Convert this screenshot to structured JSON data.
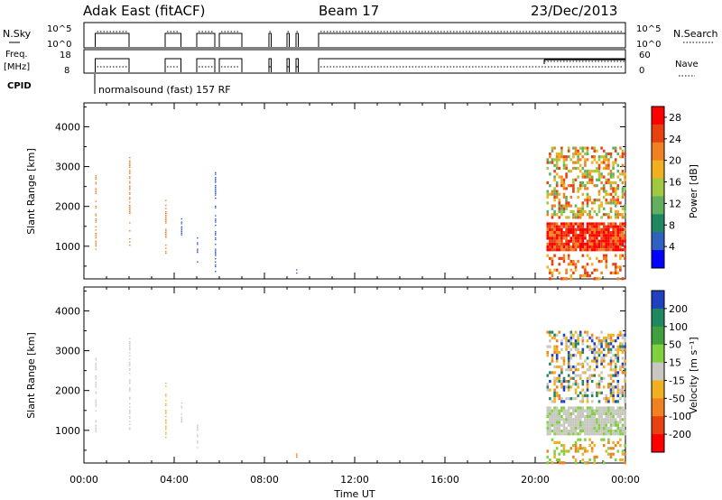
{
  "header": {
    "station": "Adak East (fitACF)",
    "beam": "Beam 17",
    "date": "23/Dec/2013"
  },
  "panels": {
    "nsky_label": "N.Sky",
    "nsky_ticks": [
      "10^5",
      "10^0"
    ],
    "nsearch_label": "N.Search",
    "nsearch_ticks": [
      "10^5",
      "10^0"
    ],
    "freq_label": "Freq.",
    "freq_unit": "[MHz]",
    "freq_ticks": [
      "18",
      "8"
    ],
    "nave_label": "Nave",
    "nave_ticks": [
      "60",
      "0"
    ],
    "cpid_label": "CPID",
    "cpid_text": "normalsound (fast) 157 RF"
  },
  "chart_data": [
    {
      "type": "heatmap",
      "name": "power",
      "ylabel": "Slant Range [km]",
      "xlabel": "Time UT",
      "xticks": [
        "00:00",
        "04:00",
        "08:00",
        "12:00",
        "16:00",
        "20:00",
        "00:00"
      ],
      "xlim_hours": [
        0,
        24
      ],
      "yticks": [
        "1000",
        "2000",
        "3000",
        "4000"
      ],
      "ylim": [
        180,
        4600
      ],
      "colorbar": {
        "label": "Power [dB]",
        "ticks": [
          "4",
          "8",
          "12",
          "16",
          "20",
          "24",
          "28"
        ],
        "range": [
          0,
          30
        ],
        "colors": [
          "#0000ff",
          "#3060c0",
          "#208860",
          "#60b060",
          "#a0c840",
          "#f0b020",
          "#f08020",
          "#e84010",
          "#ff0000"
        ]
      },
      "streaks": [
        {
          "hour": 0.5,
          "from": 900,
          "to": 2800,
          "colorIndex": 6
        },
        {
          "hour": 2.0,
          "from": 1000,
          "to": 3300,
          "colorIndex": 6
        },
        {
          "hour": 3.6,
          "from": 800,
          "to": 2200,
          "colorIndex": 6
        },
        {
          "hour": 4.3,
          "from": 1100,
          "to": 1700,
          "colorIndex": 1
        },
        {
          "hour": 5.0,
          "from": 500,
          "to": 1200,
          "colorIndex": 1
        },
        {
          "hour": 5.8,
          "from": 300,
          "to": 2900,
          "colorIndex": 1
        },
        {
          "hour": 9.4,
          "from": 300,
          "to": 400,
          "colorIndex": 1
        }
      ],
      "scatter_regions": [
        {
          "h0": 20.5,
          "h1": 24.0,
          "r0": 1700,
          "r1": 3500,
          "colorIndices": [
            3,
            4,
            5,
            6,
            7
          ]
        },
        {
          "h0": 20.5,
          "h1": 24.0,
          "r0": 900,
          "r1": 1600,
          "colorIndices": [
            7,
            8,
            8,
            6
          ]
        },
        {
          "h0": 20.5,
          "h1": 24.0,
          "r0": 200,
          "r1": 800,
          "colorIndices": [
            5,
            6,
            7
          ]
        }
      ]
    },
    {
      "type": "heatmap",
      "name": "velocity",
      "ylabel": "Slant Range [km]",
      "xlabel": "Time UT",
      "xticks": [
        "00:00",
        "04:00",
        "08:00",
        "12:00",
        "16:00",
        "20:00",
        "00:00"
      ],
      "xlim_hours": [
        0,
        24
      ],
      "yticks": [
        "1000",
        "2000",
        "3000",
        "4000"
      ],
      "ylim": [
        180,
        4600
      ],
      "colorbar": {
        "label": "Velocity [m s⁻¹]",
        "ticks": [
          "200",
          "100",
          "50",
          "15",
          "-15",
          "-50",
          "-100",
          "-200"
        ],
        "colors": [
          "#2040c0",
          "#208860",
          "#40a040",
          "#80d040",
          "#c8c8c0",
          "#f0b020",
          "#f08020",
          "#e84010",
          "#ff0000"
        ]
      },
      "streaks": [
        {
          "hour": 0.5,
          "from": 900,
          "to": 2800,
          "colorIndex": 4
        },
        {
          "hour": 2.0,
          "from": 1000,
          "to": 3300,
          "colorIndex": 4
        },
        {
          "hour": 3.6,
          "from": 800,
          "to": 2200,
          "colorIndex": 5
        },
        {
          "hour": 4.3,
          "from": 1100,
          "to": 1700,
          "colorIndex": 4
        },
        {
          "hour": 5.0,
          "from": 500,
          "to": 1200,
          "colorIndex": 4
        },
        {
          "hour": 9.4,
          "from": 300,
          "to": 400,
          "colorIndex": 6
        }
      ],
      "scatter_regions": [
        {
          "h0": 20.5,
          "h1": 24.0,
          "r0": 1700,
          "r1": 3500,
          "colorIndices": [
            4,
            4,
            5,
            5,
            6,
            0,
            1
          ]
        },
        {
          "h0": 20.5,
          "h1": 24.0,
          "r0": 900,
          "r1": 1600,
          "colorIndices": [
            4,
            4,
            4,
            3
          ]
        },
        {
          "h0": 20.5,
          "h1": 24.0,
          "r0": 200,
          "r1": 800,
          "colorIndices": [
            5,
            6,
            3
          ]
        }
      ]
    }
  ]
}
